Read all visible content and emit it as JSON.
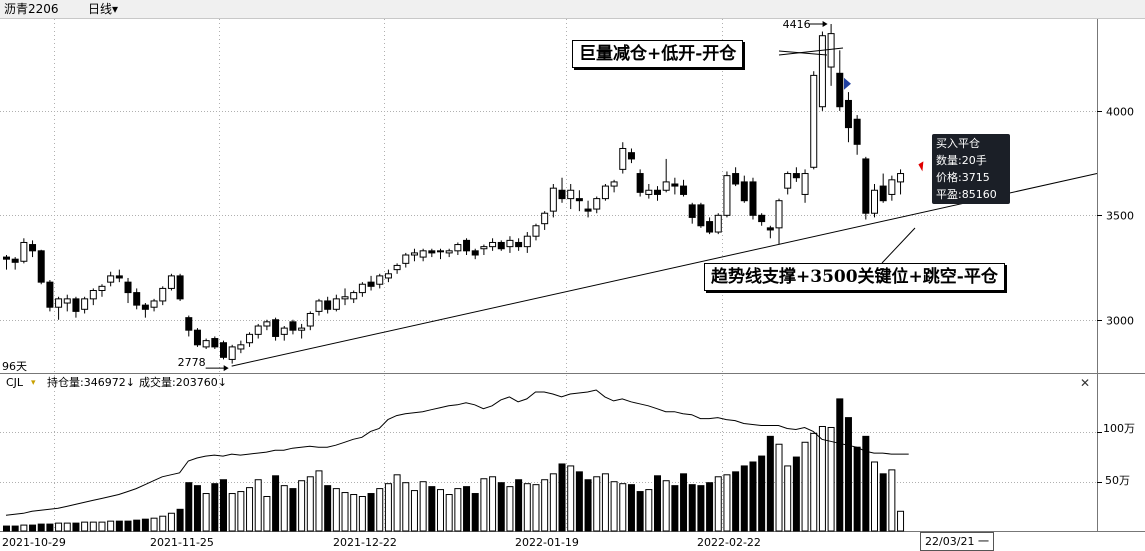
{
  "toolbar": {
    "symbol": "沥青2206",
    "period": "日线",
    "period_arrow": "▾"
  },
  "price_panel": {
    "days_label": "96天",
    "high_label": "4416",
    "low_label": "2778",
    "y_ticks": [
      "3000",
      "3500",
      "4000"
    ]
  },
  "volume_panel": {
    "indicator_name": "CJL",
    "indicator_arrow": "▾",
    "oi_text": "持仓量:346972↓",
    "vol_text": "成交量:203760↓",
    "y_ticks": [
      "50万",
      "100万"
    ],
    "close_glyph": "✕"
  },
  "x_axis": {
    "labels": [
      "2021-10-29",
      "2021-11-25",
      "2021-12-22",
      "2022-01-19",
      "2022-02-22"
    ],
    "current_date": "22/03/21 一"
  },
  "annotations": {
    "top": "巨量减仓+低开-开仓",
    "bottom": "趋势线支撑+3500关键位+跳空-平仓"
  },
  "trade_tip": {
    "line1": "买入平仓",
    "line2": "数量:20手",
    "line3": "价格:3715",
    "line4": "平盈:85160"
  },
  "colors": {
    "up": "#000000",
    "down": "#000000",
    "grid": "#b0b0b0",
    "buy_marker": "#e00000",
    "sell_marker": "#1f3fa0"
  },
  "chart_data": [
    {
      "type": "candlestick",
      "ylim": [
        2745,
        4440
      ],
      "note_points": {
        "high": 4416,
        "low": 2778
      },
      "candles": [
        [
          3300,
          3310,
          3240,
          3290
        ],
        [
          3290,
          3300,
          3240,
          3275
        ],
        [
          3280,
          3390,
          3270,
          3370
        ],
        [
          3360,
          3380,
          3300,
          3330
        ],
        [
          3330,
          3335,
          3170,
          3180
        ],
        [
          3180,
          3190,
          3040,
          3060
        ],
        [
          3060,
          3110,
          3000,
          3100
        ],
        [
          3080,
          3120,
          3040,
          3100
        ],
        [
          3100,
          3110,
          3010,
          3040
        ],
        [
          3050,
          3110,
          3030,
          3100
        ],
        [
          3100,
          3150,
          3070,
          3140
        ],
        [
          3140,
          3170,
          3110,
          3160
        ],
        [
          3180,
          3230,
          3160,
          3210
        ],
        [
          3210,
          3240,
          3180,
          3200
        ],
        [
          3180,
          3200,
          3080,
          3130
        ],
        [
          3130,
          3150,
          3050,
          3070
        ],
        [
          3070,
          3080,
          3010,
          3050
        ],
        [
          3060,
          3100,
          3040,
          3090
        ],
        [
          3090,
          3160,
          3070,
          3150
        ],
        [
          3150,
          3220,
          3140,
          3210
        ],
        [
          3210,
          3220,
          3090,
          3100
        ],
        [
          3010,
          3020,
          2920,
          2950
        ],
        [
          2950,
          2960,
          2870,
          2880
        ],
        [
          2870,
          2910,
          2860,
          2900
        ],
        [
          2910,
          2920,
          2860,
          2870
        ],
        [
          2890,
          2900,
          2810,
          2820
        ],
        [
          2810,
          2880,
          2790,
          2870
        ],
        [
          2860,
          2900,
          2840,
          2880
        ],
        [
          2890,
          2940,
          2870,
          2930
        ],
        [
          2930,
          2980,
          2910,
          2970
        ],
        [
          2970,
          3000,
          2950,
          2990
        ],
        [
          3000,
          3010,
          2900,
          2920
        ],
        [
          2930,
          2970,
          2900,
          2960
        ],
        [
          2990,
          3000,
          2930,
          2950
        ],
        [
          2950,
          2980,
          2910,
          2960
        ],
        [
          2970,
          3040,
          2950,
          3030
        ],
        [
          3040,
          3100,
          3020,
          3090
        ],
        [
          3090,
          3110,
          3030,
          3050
        ],
        [
          3050,
          3120,
          3040,
          3100
        ],
        [
          3100,
          3150,
          3070,
          3110
        ],
        [
          3100,
          3140,
          3080,
          3130
        ],
        [
          3130,
          3180,
          3110,
          3170
        ],
        [
          3180,
          3210,
          3140,
          3160
        ],
        [
          3170,
          3220,
          3150,
          3210
        ],
        [
          3200,
          3240,
          3180,
          3220
        ],
        [
          3240,
          3270,
          3220,
          3260
        ],
        [
          3270,
          3320,
          3250,
          3310
        ],
        [
          3310,
          3340,
          3280,
          3320
        ],
        [
          3300,
          3340,
          3280,
          3330
        ],
        [
          3330,
          3340,
          3300,
          3320
        ],
        [
          3330,
          3340,
          3290,
          3330
        ],
        [
          3320,
          3340,
          3300,
          3330
        ],
        [
          3330,
          3370,
          3310,
          3360
        ],
        [
          3380,
          3390,
          3310,
          3330
        ],
        [
          3330,
          3340,
          3290,
          3310
        ],
        [
          3340,
          3360,
          3310,
          3350
        ],
        [
          3350,
          3390,
          3330,
          3370
        ],
        [
          3370,
          3380,
          3330,
          3340
        ],
        [
          3350,
          3400,
          3320,
          3380
        ],
        [
          3370,
          3390,
          3330,
          3350
        ],
        [
          3350,
          3420,
          3320,
          3400
        ],
        [
          3400,
          3460,
          3380,
          3450
        ],
        [
          3460,
          3520,
          3430,
          3510
        ],
        [
          3520,
          3650,
          3490,
          3630
        ],
        [
          3620,
          3680,
          3560,
          3580
        ],
        [
          3580,
          3650,
          3530,
          3620
        ],
        [
          3580,
          3620,
          3520,
          3570
        ],
        [
          3530,
          3570,
          3490,
          3520
        ],
        [
          3530,
          3590,
          3510,
          3580
        ],
        [
          3580,
          3650,
          3570,
          3640
        ],
        [
          3640,
          3670,
          3610,
          3660
        ],
        [
          3720,
          3850,
          3700,
          3820
        ],
        [
          3800,
          3820,
          3750,
          3770
        ],
        [
          3700,
          3720,
          3590,
          3610
        ],
        [
          3600,
          3650,
          3580,
          3620
        ],
        [
          3620,
          3640,
          3570,
          3600
        ],
        [
          3620,
          3770,
          3610,
          3660
        ],
        [
          3650,
          3680,
          3600,
          3640
        ],
        [
          3640,
          3670,
          3590,
          3600
        ],
        [
          3550,
          3560,
          3460,
          3490
        ],
        [
          3550,
          3560,
          3440,
          3450
        ],
        [
          3470,
          3490,
          3410,
          3420
        ],
        [
          3420,
          3510,
          3410,
          3500
        ],
        [
          3500,
          3710,
          3490,
          3690
        ],
        [
          3700,
          3730,
          3640,
          3650
        ],
        [
          3660,
          3690,
          3560,
          3570
        ],
        [
          3660,
          3680,
          3480,
          3500
        ],
        [
          3500,
          3510,
          3450,
          3470
        ],
        [
          3440,
          3450,
          3390,
          3430
        ],
        [
          3440,
          3580,
          3360,
          3570
        ],
        [
          3630,
          3710,
          3600,
          3700
        ],
        [
          3700,
          3730,
          3660,
          3680
        ],
        [
          3600,
          3720,
          3560,
          3700
        ],
        [
          3730,
          4190,
          3720,
          4170
        ],
        [
          4020,
          4380,
          4000,
          4360
        ],
        [
          4210,
          4416,
          4120,
          4370
        ],
        [
          4180,
          4290,
          4000,
          4020
        ],
        [
          4050,
          4090,
          3850,
          3920
        ],
        [
          3960,
          3980,
          3790,
          3840
        ],
        [
          3770,
          3780,
          3480,
          3510
        ],
        [
          3510,
          3650,
          3490,
          3620
        ],
        [
          3640,
          3700,
          3560,
          3570
        ],
        [
          3600,
          3690,
          3570,
          3670
        ],
        [
          3660,
          3720,
          3600,
          3700
        ]
      ],
      "trend_line": [
        [
          2778,
          3700
        ]
      ],
      "markers": [
        {
          "type": "sell",
          "index": 97
        },
        {
          "type": "buy",
          "index": 105
        }
      ]
    },
    {
      "type": "bar+line",
      "ylim": [
        0,
        1420000
      ],
      "volume": [
        5,
        5,
        6,
        6,
        7,
        7,
        8,
        8,
        8,
        9,
        9,
        9,
        10,
        10,
        10,
        11,
        12,
        13,
        15,
        18,
        22,
        49,
        46,
        38,
        48,
        52,
        38,
        40,
        44,
        52,
        35,
        56,
        46,
        43,
        51,
        55,
        61,
        46,
        43,
        39,
        37,
        35,
        38,
        43,
        48,
        57,
        49,
        41,
        50,
        45,
        42,
        37,
        43,
        45,
        38,
        53,
        55,
        49,
        45,
        52,
        48,
        47,
        52,
        58,
        68,
        66,
        60,
        52,
        55,
        58,
        50,
        48,
        47,
        40,
        42,
        56,
        51,
        46,
        58,
        47,
        46,
        49,
        55,
        57,
        60,
        66,
        70,
        76,
        96,
        88,
        66,
        75,
        90,
        99,
        106,
        105,
        134,
        115,
        85,
        96,
        70,
        58,
        62,
        20
      ],
      "open_interest": [
        16,
        17,
        18,
        20,
        21,
        22,
        23,
        25,
        27,
        29,
        31,
        33,
        35,
        37,
        40,
        43,
        47,
        51,
        55,
        57,
        59,
        71,
        74,
        76,
        77,
        76,
        78,
        77,
        78,
        79,
        80,
        82,
        82,
        84,
        85,
        86,
        85,
        85,
        87,
        90,
        93,
        95,
        101,
        104,
        113,
        117,
        119,
        120,
        121,
        123,
        125,
        127,
        128,
        130,
        128,
        124,
        127,
        133,
        136,
        131,
        134,
        141,
        141,
        139,
        136,
        139,
        140,
        141,
        143,
        136,
        132,
        134,
        131,
        129,
        127,
        124,
        121,
        121,
        119,
        118,
        114,
        114,
        115,
        113,
        112,
        109,
        108,
        107,
        107,
        107,
        104,
        103,
        105,
        101,
        93,
        91,
        89,
        87,
        85,
        81,
        79,
        79,
        78,
        78,
        78
      ]
    }
  ]
}
